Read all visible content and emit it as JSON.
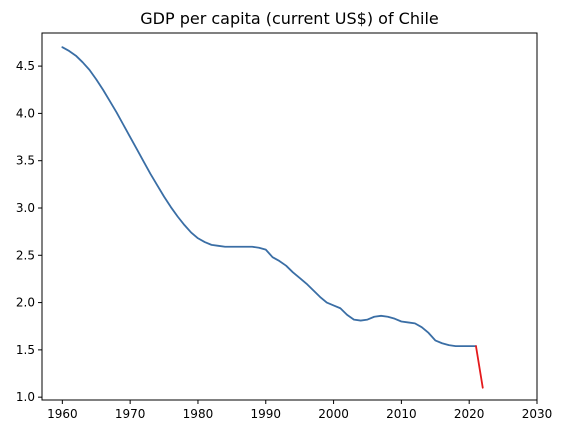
{
  "chart_data": {
    "type": "line",
    "title": "GDP per capita (current US$) of Chile",
    "xlabel": "",
    "ylabel": "",
    "xlim": [
      1957,
      2030
    ],
    "ylim": [
      0.97,
      4.85
    ],
    "xticks": [
      "1960",
      "1970",
      "1980",
      "1990",
      "2000",
      "2010",
      "2020",
      "2030"
    ],
    "yticks": [
      "1.0",
      "1.5",
      "2.0",
      "2.5",
      "3.0",
      "3.5",
      "4.0",
      "4.5"
    ],
    "grid": false,
    "legend": "none",
    "series": [
      {
        "color": "#3a6ea5",
        "x": [
          1960,
          1961,
          1962,
          1963,
          1964,
          1965,
          1966,
          1967,
          1968,
          1969,
          1970,
          1971,
          1972,
          1973,
          1974,
          1975,
          1976,
          1977,
          1978,
          1979,
          1980,
          1981,
          1982,
          1983,
          1984,
          1985,
          1986,
          1987,
          1988,
          1989,
          1990,
          1991,
          1992,
          1993,
          1994,
          1995,
          1996,
          1997,
          1998,
          1999,
          2000,
          2001,
          2002,
          2003,
          2004,
          2005,
          2006,
          2007,
          2008,
          2009,
          2010,
          2011,
          2012,
          2013,
          2014,
          2015,
          2016,
          2017,
          2018,
          2019,
          2020,
          2021
        ],
        "y": [
          4.7,
          4.66,
          4.61,
          4.54,
          4.46,
          4.36,
          4.25,
          4.13,
          4.01,
          3.88,
          3.75,
          3.62,
          3.49,
          3.36,
          3.24,
          3.12,
          3.01,
          2.91,
          2.82,
          2.74,
          2.68,
          2.64,
          2.61,
          2.6,
          2.59,
          2.59,
          2.59,
          2.59,
          2.59,
          2.58,
          2.56,
          2.48,
          2.44,
          2.39,
          2.32,
          2.26,
          2.2,
          2.13,
          2.06,
          2.0,
          1.97,
          1.94,
          1.87,
          1.82,
          1.81,
          1.82,
          1.85,
          1.86,
          1.85,
          1.83,
          1.8,
          1.79,
          1.78,
          1.74,
          1.68,
          1.6,
          1.57,
          1.55,
          1.54,
          1.54,
          1.54,
          1.54
        ]
      },
      {
        "color": "#e41a1c",
        "x": [
          2021,
          2022
        ],
        "y": [
          1.54,
          1.1
        ]
      }
    ]
  }
}
